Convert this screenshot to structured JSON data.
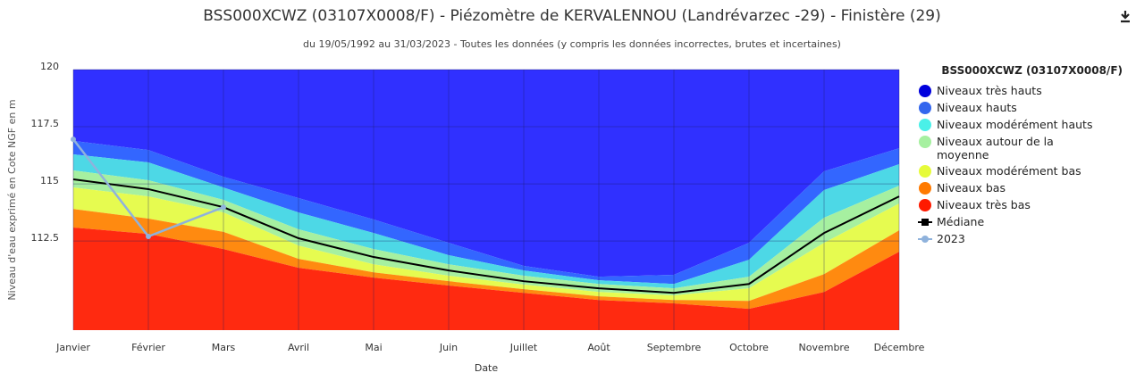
{
  "chart_data": {
    "type": "area",
    "title": "BSS000XCWZ (03107X0008/F) - Piézomètre de KERVALENNOU (Landrévarzec -29) - Finistère (29)",
    "subtitle": "du 19/05/1992 au 31/03/2023 - Toutes les données (y compris les données incorrectes, brutes et incertaines)",
    "x_label": "Date",
    "y_label": "Niveau d'eau exprimé en Cote NGF en m",
    "legend_title": "BSS000XCWZ (03107X0008/F)",
    "categories": [
      "Janvier",
      "Février",
      "Mars",
      "Avril",
      "Mai",
      "Juin",
      "Juillet",
      "Août",
      "Septembre",
      "Octobre",
      "Novembre",
      "Décembre"
    ],
    "ylim": [
      108.6,
      120
    ],
    "yticks": [
      112.5,
      115,
      117.5,
      120
    ],
    "grid": true,
    "legend": "right",
    "series": [
      {
        "name": "Niveaux très hauts",
        "color": "#3030ff",
        "legend_color": "#0000dd",
        "values": [
          120,
          120,
          120,
          120,
          120,
          120,
          120,
          120,
          120,
          120,
          120,
          120
        ]
      },
      {
        "name": "Niveaux hauts",
        "color": "#3366ff",
        "legend_color": "#3366ee",
        "values": [
          116.88,
          116.48,
          115.31,
          114.38,
          113.44,
          112.42,
          111.41,
          110.94,
          111.02,
          112.42,
          115.55,
          116.56
        ]
      },
      {
        "name": "Niveaux modérément hauts",
        "color": "#4dd8e6",
        "legend_color": "#4af0e8",
        "values": [
          116.29,
          115.94,
          114.84,
          113.75,
          112.85,
          111.88,
          111.21,
          110.78,
          110.62,
          111.68,
          114.73,
          115.86
        ]
      },
      {
        "name": "Niveaux autour de la moyenne",
        "color": "#a6f0a0",
        "legend_color": "#a6f0a0",
        "values": [
          115.59,
          115.16,
          114.3,
          113.01,
          112.15,
          111.48,
          110.98,
          110.62,
          110.43,
          110.94,
          113.52,
          114.92
        ]
      },
      {
        "name": "Niveaux modérément bas",
        "color": "#e6fb50",
        "legend_color": "#e6fb3a",
        "values": [
          114.84,
          114.45,
          113.75,
          112.3,
          111.48,
          110.98,
          110.59,
          110.27,
          110.12,
          110.43,
          112.42,
          114.14
        ]
      },
      {
        "name": "Niveaux bas",
        "color": "#ff8a10",
        "legend_color": "#ff7a00",
        "values": [
          113.9,
          113.48,
          112.9,
          111.72,
          111.13,
          110.74,
          110.39,
          110.08,
          109.92,
          109.88,
          111.05,
          112.97
        ]
      },
      {
        "name": "Niveaux très bas",
        "color": "#ff2a10",
        "legend_color": "#ff1a00",
        "values": [
          113.09,
          112.81,
          112.15,
          111.33,
          110.9,
          110.55,
          110.23,
          109.92,
          109.77,
          109.53,
          110.27,
          112.03
        ]
      },
      {
        "name": "Médiane",
        "type": "line",
        "color": "#000000",
        "values": [
          115.2,
          114.77,
          113.98,
          112.62,
          111.8,
          111.21,
          110.74,
          110.43,
          110.23,
          110.62,
          112.85,
          114.45
        ]
      },
      {
        "name": "2023",
        "type": "line",
        "color": "#8fb2dc",
        "values": [
          116.95,
          112.7,
          113.98,
          null,
          null,
          null,
          null,
          null,
          null,
          null,
          null,
          null
        ]
      }
    ]
  }
}
